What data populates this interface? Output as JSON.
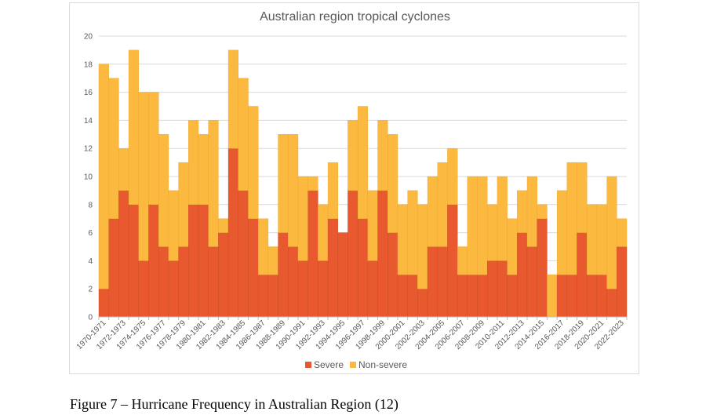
{
  "chart_data": {
    "type": "bar",
    "stacked": true,
    "title": "Australian region tropical cyclones",
    "xlabel": "",
    "ylabel": "",
    "ylim": [
      0,
      20
    ],
    "yticks": [
      0,
      2,
      4,
      6,
      8,
      10,
      12,
      14,
      16,
      18,
      20
    ],
    "grid": true,
    "legend_position": "bottom",
    "categories": [
      "1970-1971",
      "1971-1972",
      "1972-1973",
      "1973-1974",
      "1974-1975",
      "1975-1976",
      "1976-1977",
      "1977-1978",
      "1978-1979",
      "1979-1980",
      "1980-1981",
      "1981-1982",
      "1982-1983",
      "1983-1984",
      "1984-1985",
      "1985-1986",
      "1986-1987",
      "1987-1988",
      "1988-1989",
      "1989-1990",
      "1990-1991",
      "1991-1992",
      "1992-1993",
      "1993-1994",
      "1994-1995",
      "1995-1996",
      "1996-1997",
      "1997-1998",
      "1998-1999",
      "1999-2000",
      "2000-2001",
      "2001-2002",
      "2002-2003",
      "2003-2004",
      "2004-2005",
      "2005-2006",
      "2006-2007",
      "2007-2008",
      "2008-2009",
      "2009-2010",
      "2010-2011",
      "2011-2012",
      "2012-2013",
      "2013-2014",
      "2014-2015",
      "2015-2016",
      "2016-2017",
      "2017-2018",
      "2018-2019",
      "2019-2020",
      "2020-2021",
      "2021-2022",
      "2022-2023"
    ],
    "x_tick_labels": [
      "1970-1971",
      "1972-1973",
      "1974-1975",
      "1976-1977",
      "1978-1979",
      "1980-1981",
      "1982-1983",
      "1984-1985",
      "1986-1987",
      "1988-1989",
      "1990-1991",
      "1992-1993",
      "1994-1995",
      "1996-1997",
      "1998-1999",
      "2000-2001",
      "2002-2003",
      "2004-2005",
      "2006-2007",
      "2008-2009",
      "2010-2011",
      "2012-2013",
      "2014-2015",
      "2016-2017",
      "2018-2019",
      "2020-2021",
      "2022-2023"
    ],
    "series": [
      {
        "name": "Severe",
        "color": "#e8592f",
        "values": [
          2,
          7,
          9,
          8,
          4,
          8,
          5,
          4,
          5,
          8,
          8,
          5,
          6,
          12,
          9,
          7,
          3,
          3,
          6,
          5,
          4,
          9,
          4,
          7,
          6,
          9,
          7,
          4,
          9,
          6,
          3,
          3,
          2,
          5,
          5,
          8,
          3,
          3,
          3,
          4,
          4,
          3,
          6,
          5,
          7,
          0,
          3,
          3,
          6,
          3,
          3,
          2,
          5
        ]
      },
      {
        "name": "Non-severe",
        "color": "#fbb940",
        "values": [
          16,
          10,
          3,
          11,
          12,
          8,
          8,
          5,
          6,
          6,
          5,
          9,
          1,
          7,
          8,
          8,
          4,
          2,
          7,
          8,
          6,
          1,
          4,
          4,
          0,
          5,
          8,
          5,
          5,
          7,
          5,
          6,
          6,
          5,
          6,
          4,
          2,
          7,
          7,
          4,
          6,
          4,
          3,
          5,
          1,
          3,
          6,
          8,
          5,
          5,
          5,
          8,
          2
        ]
      }
    ]
  },
  "caption": "Figure 7 – Hurricane Frequency in Australian Region (12)"
}
